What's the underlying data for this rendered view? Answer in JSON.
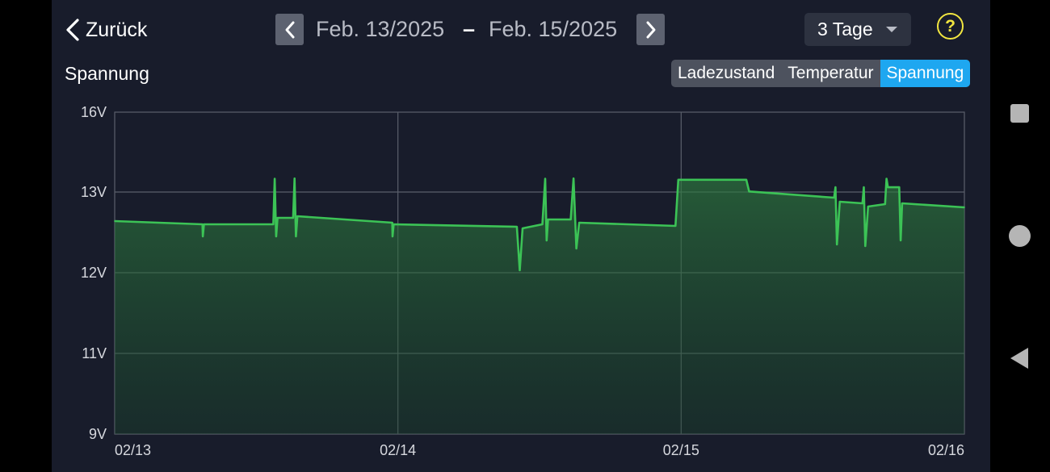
{
  "header": {
    "back_label": "Zurück",
    "date_start": "Feb. 13/2025",
    "date_separator": "–",
    "date_end": "Feb. 15/2025",
    "range_selected": "3 Tage",
    "help_symbol": "?"
  },
  "section_title": "Spannung",
  "metric_tabs": [
    {
      "label": "Ladezustand",
      "active": false
    },
    {
      "label": "Temperatur",
      "active": false
    },
    {
      "label": "Spannung",
      "active": true
    }
  ],
  "icons": {
    "back": "chevron-left-icon",
    "prev": "chevron-left-icon",
    "next": "chevron-right-icon",
    "dropdown": "caret-down-icon",
    "help": "help-circle-icon"
  },
  "colors": {
    "background": "#181c2b",
    "line": "#3cc356",
    "active_tab": "#1ea7f0",
    "help": "#f2e640"
  },
  "chart_data": {
    "type": "area",
    "title": "",
    "xlabel": "",
    "ylabel": "",
    "y_tick_labels": [
      "9V",
      "11V",
      "12V",
      "13V",
      "16V"
    ],
    "y_tick_values": [
      9,
      11,
      12,
      13,
      16
    ],
    "x_tick_labels": [
      "02/13",
      "02/14",
      "02/15",
      "02/16"
    ],
    "x_tick_values": [
      0,
      1,
      2,
      3
    ],
    "x_unit": "days since 02/13",
    "grid": true,
    "series": [
      {
        "values": [
          [
            0.0,
            12.64
          ],
          [
            0.31,
            12.6
          ],
          [
            0.311,
            12.45
          ],
          [
            0.315,
            12.6
          ],
          [
            0.56,
            12.6
          ],
          [
            0.565,
            13.5
          ],
          [
            0.568,
            12.72
          ],
          [
            0.57,
            12.45
          ],
          [
            0.575,
            12.68
          ],
          [
            0.63,
            12.68
          ],
          [
            0.635,
            13.51
          ],
          [
            0.638,
            12.73
          ],
          [
            0.64,
            12.45
          ],
          [
            0.645,
            12.7
          ],
          [
            0.98,
            12.62
          ],
          [
            0.981,
            12.45
          ],
          [
            0.985,
            12.6
          ],
          [
            1.42,
            12.57
          ],
          [
            1.43,
            12.03
          ],
          [
            1.44,
            12.55
          ],
          [
            1.51,
            12.6
          ],
          [
            1.52,
            13.5
          ],
          [
            1.525,
            12.4
          ],
          [
            1.53,
            12.66
          ],
          [
            1.61,
            12.66
          ],
          [
            1.62,
            13.51
          ],
          [
            1.63,
            12.3
          ],
          [
            1.64,
            12.62
          ],
          [
            1.98,
            12.58
          ],
          [
            1.99,
            13.46
          ],
          [
            2.23,
            13.46
          ],
          [
            2.24,
            13.02
          ],
          [
            2.54,
            12.93
          ],
          [
            2.545,
            13.18
          ],
          [
            2.55,
            12.35
          ],
          [
            2.56,
            12.88
          ],
          [
            2.64,
            12.86
          ],
          [
            2.645,
            13.18
          ],
          [
            2.65,
            12.33
          ],
          [
            2.66,
            12.82
          ],
          [
            2.72,
            12.85
          ],
          [
            2.725,
            13.5
          ],
          [
            2.73,
            13.18
          ],
          [
            2.77,
            13.18
          ],
          [
            2.775,
            12.4
          ],
          [
            2.78,
            12.86
          ],
          [
            3.0,
            12.81
          ]
        ]
      }
    ]
  }
}
